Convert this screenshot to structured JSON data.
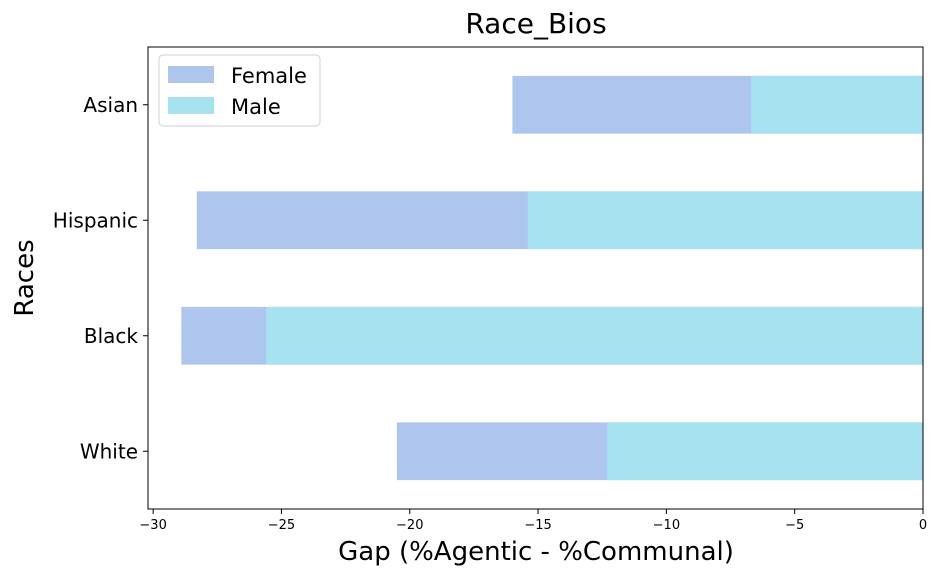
{
  "chart_data": {
    "type": "bar",
    "orientation": "horizontal",
    "stacked": false,
    "title": "Race_Bios",
    "xlabel": "Gap (%Agentic - %Communal)",
    "ylabel": "Races",
    "categories": [
      "White",
      "Black",
      "Hispanic",
      "Asian"
    ],
    "series": [
      {
        "name": "Female",
        "values": [
          -20.5,
          -28.9,
          -28.3,
          -16.0
        ],
        "color": "#aec6ee"
      },
      {
        "name": "Male",
        "values": [
          -12.3,
          -25.6,
          -15.4,
          -6.7
        ],
        "color": "#a6e2f0"
      }
    ],
    "xlim": [
      -30.2,
      0
    ],
    "xticks": [
      -30,
      -25,
      -20,
      -15,
      -10,
      -5,
      0
    ],
    "xtick_labels": [
      "−30",
      "−25",
      "−20",
      "−15",
      "−10",
      "−5",
      "0"
    ],
    "legend_position": "upper-left",
    "grid": false
  }
}
